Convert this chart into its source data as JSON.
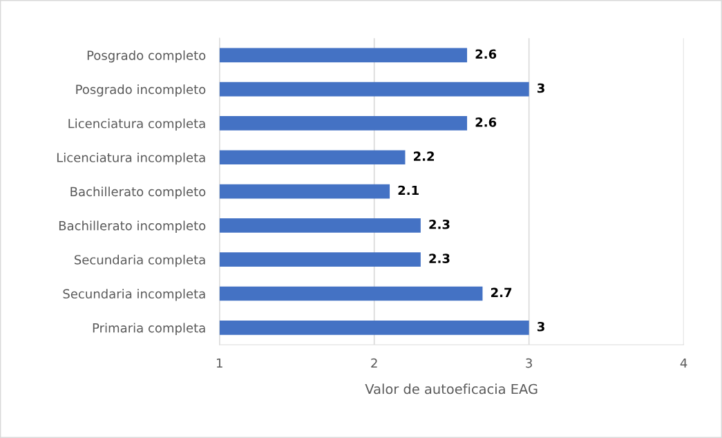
{
  "chart_data": {
    "type": "bar",
    "orientation": "horizontal",
    "categories": [
      "Posgrado completo",
      "Posgrado incompleto",
      "Licenciatura completa",
      "Licenciatura incompleta",
      "Bachillerato completo",
      "Bachillerato incompleto",
      "Secundaria completa",
      "Secundaria incompleta",
      "Primaria completa"
    ],
    "values": [
      2.6,
      3,
      2.6,
      2.2,
      2.1,
      2.3,
      2.3,
      2.7,
      3
    ],
    "color": "#4472c4",
    "xlim": [
      1,
      4
    ],
    "xticks": [
      1,
      2,
      3,
      4
    ],
    "xlabel": "Valor de autoeficacia EAG",
    "grid": "x",
    "data_labels": true
  }
}
